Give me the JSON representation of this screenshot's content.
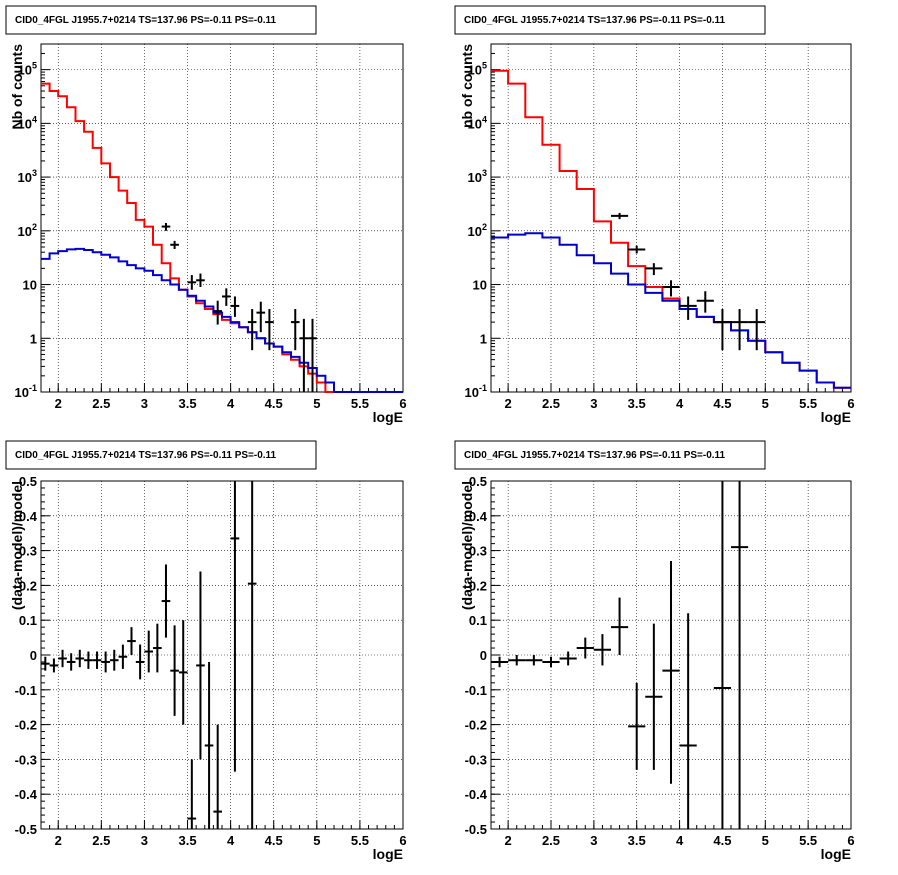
{
  "chart_data": [
    {
      "type": "line",
      "title": "CID0_4FGL J1955.7+0214 TS=137.96 PS=-0.11 PS=-0.11",
      "xlabel": "logE",
      "ylabel": "Nb of counts",
      "xlim": [
        1.8,
        6
      ],
      "ylim": [
        0.1,
        300000
      ],
      "log_y": true,
      "grid": true,
      "x_ticks": [
        "2",
        "2.5",
        "3",
        "3.5",
        "4",
        "4.5",
        "5",
        "5.5",
        "6"
      ],
      "y_ticks": [
        {
          "value": 0.1,
          "label": "10",
          "exp": "-1"
        },
        {
          "value": 1,
          "label": "1",
          "exp": ""
        },
        {
          "value": 10,
          "label": "10",
          "exp": ""
        },
        {
          "value": 100,
          "label": "10",
          "exp": "2"
        },
        {
          "value": 1000,
          "label": "10",
          "exp": "3"
        },
        {
          "value": 10000,
          "label": "10",
          "exp": "4"
        },
        {
          "value": 100000,
          "label": "10",
          "exp": "5"
        }
      ],
      "bin_edges": [
        1.8,
        1.9,
        2.0,
        2.1,
        2.2,
        2.3,
        2.4,
        2.5,
        2.6,
        2.7,
        2.8,
        2.9,
        3.0,
        3.1,
        3.2,
        3.3,
        3.4,
        3.5,
        3.6,
        3.7,
        3.8,
        3.9,
        4.0,
        4.1,
        4.2,
        4.3,
        4.4,
        4.5,
        4.6,
        4.7,
        4.8,
        4.9,
        5.0,
        5.1,
        5.2,
        5.3,
        5.4,
        5.5,
        5.6,
        5.7,
        5.8,
        5.9,
        6.0
      ],
      "series": [
        {
          "color": "#ff0000",
          "style": "step",
          "values": [
            55000,
            40000,
            32000,
            20000,
            11000,
            7000,
            3500,
            1800,
            1000,
            560,
            330,
            160,
            120,
            55,
            25,
            13,
            8,
            6,
            4.5,
            3.5,
            2.8,
            2.2,
            1.9,
            1.6,
            1.3,
            1.0,
            0.8,
            0.7,
            0.5,
            0.4,
            0.3,
            0.22,
            0.15,
            0.1,
            0.1,
            0.1,
            0.1,
            0.1,
            0.1,
            0.1,
            0.1,
            0.1
          ]
        },
        {
          "color": "#0000cc",
          "style": "step",
          "values": [
            30,
            38,
            42,
            45,
            46,
            44,
            40,
            36,
            32,
            27,
            23,
            20,
            18,
            15,
            12,
            10,
            8,
            6.2,
            5,
            3.9,
            3.0,
            2.5,
            2.0,
            1.6,
            1.3,
            1.0,
            0.8,
            0.7,
            0.55,
            0.45,
            0.35,
            0.28,
            0.2,
            0.15,
            0.1,
            0.1,
            0.1,
            0.1,
            0.1,
            0.1,
            0.1,
            0.1
          ]
        },
        {
          "color": "#000000",
          "style": "points",
          "points": [
            {
              "x": 3.25,
              "y": 120,
              "xerr": 0.05,
              "lo": 100,
              "hi": 140
            },
            {
              "x": 3.35,
              "y": 55,
              "xerr": 0.05,
              "lo": 46,
              "hi": 65
            },
            {
              "x": 3.55,
              "y": 11,
              "xerr": 0.05,
              "lo": 8,
              "hi": 15
            },
            {
              "x": 3.65,
              "y": 12,
              "xerr": 0.05,
              "lo": 9,
              "hi": 16
            },
            {
              "x": 3.85,
              "y": 3.2,
              "xerr": 0.05,
              "lo": 1.8,
              "hi": 5
            },
            {
              "x": 3.95,
              "y": 6,
              "xerr": 0.05,
              "lo": 4,
              "hi": 8.5
            },
            {
              "x": 4.05,
              "y": 4,
              "xerr": 0.05,
              "lo": 2.5,
              "hi": 6
            },
            {
              "x": 4.25,
              "y": 2,
              "xerr": 0.05,
              "lo": 0.6,
              "hi": 3.5
            },
            {
              "x": 4.35,
              "y": 3,
              "xerr": 0.05,
              "lo": 1.3,
              "hi": 4.8
            },
            {
              "x": 4.45,
              "y": 2,
              "xerr": 0.05,
              "lo": 0.6,
              "hi": 3.5
            },
            {
              "x": 4.75,
              "y": 2,
              "xerr": 0.05,
              "lo": 0.6,
              "hi": 3.5
            },
            {
              "x": 4.85,
              "y": 1,
              "xerr": 0.05,
              "lo": 0.1,
              "hi": 2.3
            },
            {
              "x": 4.95,
              "y": 1,
              "xerr": 0.05,
              "lo": 0.1,
              "hi": 2.3
            }
          ]
        }
      ]
    },
    {
      "type": "line",
      "title": "CID0_4FGL J1955.7+0214 TS=137.96 PS=-0.11 PS=-0.11",
      "xlabel": "logE",
      "ylabel": "nb of counts",
      "xlim": [
        1.8,
        6
      ],
      "ylim": [
        0.1,
        300000
      ],
      "log_y": true,
      "grid": true,
      "x_ticks": [
        "2",
        "2.5",
        "3",
        "3.5",
        "4",
        "4.5",
        "5",
        "5.5",
        "6"
      ],
      "y_ticks": [
        {
          "value": 0.1,
          "label": "10",
          "exp": "-1"
        },
        {
          "value": 1,
          "label": "1",
          "exp": ""
        },
        {
          "value": 10,
          "label": "10",
          "exp": ""
        },
        {
          "value": 100,
          "label": "10",
          "exp": "2"
        },
        {
          "value": 1000,
          "label": "10",
          "exp": "3"
        },
        {
          "value": 10000,
          "label": "10",
          "exp": "4"
        },
        {
          "value": 100000,
          "label": "10",
          "exp": "5"
        }
      ],
      "bin_edges": [
        1.8,
        2.0,
        2.2,
        2.4,
        2.6,
        2.8,
        3.0,
        3.2,
        3.4,
        3.6,
        3.8,
        4.0,
        4.2,
        4.4,
        4.6,
        4.8,
        5.0,
        5.2,
        5.4,
        5.6,
        5.8,
        6.0
      ],
      "series": [
        {
          "color": "#ff0000",
          "style": "step",
          "values": [
            95000,
            55000,
            13000,
            4000,
            1300,
            600,
            150,
            60,
            22,
            9,
            5.5,
            3.5,
            2.5,
            2.0,
            1.4,
            0.9,
            0.55,
            0.35,
            0.25,
            0.15,
            0.12
          ]
        },
        {
          "color": "#0000cc",
          "style": "step",
          "values": [
            75,
            85,
            90,
            75,
            55,
            35,
            25,
            16,
            10,
            7,
            5,
            3.5,
            2.5,
            2.0,
            1.4,
            0.9,
            0.55,
            0.35,
            0.25,
            0.15,
            0.12
          ]
        },
        {
          "color": "#000000",
          "style": "points",
          "points": [
            {
              "x": 3.3,
              "y": 190,
              "xerr": 0.1,
              "lo": 165,
              "hi": 215
            },
            {
              "x": 3.5,
              "y": 45,
              "xerr": 0.1,
              "lo": 38,
              "hi": 53
            },
            {
              "x": 3.7,
              "y": 20,
              "xerr": 0.1,
              "lo": 15,
              "hi": 25
            },
            {
              "x": 3.9,
              "y": 9,
              "xerr": 0.1,
              "lo": 6,
              "hi": 12
            },
            {
              "x": 4.1,
              "y": 4,
              "xerr": 0.1,
              "lo": 2.2,
              "hi": 6
            },
            {
              "x": 4.3,
              "y": 5,
              "xerr": 0.1,
              "lo": 3,
              "hi": 7.5
            },
            {
              "x": 4.5,
              "y": 2,
              "xerr": 0.1,
              "lo": 0.6,
              "hi": 3.5
            },
            {
              "x": 4.7,
              "y": 2,
              "xerr": 0.1,
              "lo": 0.6,
              "hi": 3.5
            },
            {
              "x": 4.9,
              "y": 2,
              "xerr": 0.1,
              "lo": 0.6,
              "hi": 3.5
            }
          ]
        }
      ]
    },
    {
      "type": "scatter",
      "title": "CID0_4FGL J1955.7+0214 TS=137.96 PS=-0.11 PS=-0.11",
      "xlabel": "logE",
      "ylabel": "(data-model)/model",
      "xlim": [
        1.8,
        6
      ],
      "ylim": [
        -0.5,
        0.5
      ],
      "log_y": false,
      "grid": true,
      "x_ticks": [
        "2",
        "2.5",
        "3",
        "3.5",
        "4",
        "4.5",
        "5",
        "5.5",
        "6"
      ],
      "y_ticks": [
        {
          "value": -0.5,
          "label": "-0.5",
          "exp": ""
        },
        {
          "value": -0.4,
          "label": "-0.4",
          "exp": ""
        },
        {
          "value": -0.3,
          "label": "-0.3",
          "exp": ""
        },
        {
          "value": -0.2,
          "label": "-0.2",
          "exp": ""
        },
        {
          "value": -0.1,
          "label": "-0.1",
          "exp": ""
        },
        {
          "value": 0,
          "label": "0",
          "exp": ""
        },
        {
          "value": 0.1,
          "label": "0.1",
          "exp": ""
        },
        {
          "value": 0.2,
          "label": "0.2",
          "exp": ""
        },
        {
          "value": 0.3,
          "label": "0.3",
          "exp": ""
        },
        {
          "value": 0.4,
          "label": "0.4",
          "exp": ""
        },
        {
          "value": 0.5,
          "label": "0.5",
          "exp": ""
        }
      ],
      "series": [
        {
          "color": "#000000",
          "style": "points",
          "points": [
            {
              "x": 1.85,
              "y": -0.025,
              "xerr": 0.05,
              "lo": -0.045,
              "hi": -0.005
            },
            {
              "x": 1.95,
              "y": -0.03,
              "xerr": 0.05,
              "lo": -0.05,
              "hi": -0.01
            },
            {
              "x": 2.05,
              "y": -0.01,
              "xerr": 0.05,
              "lo": -0.035,
              "hi": 0.015
            },
            {
              "x": 2.15,
              "y": -0.02,
              "xerr": 0.05,
              "lo": -0.045,
              "hi": 0.005
            },
            {
              "x": 2.25,
              "y": -0.01,
              "xerr": 0.05,
              "lo": -0.035,
              "hi": 0.015
            },
            {
              "x": 2.35,
              "y": -0.015,
              "xerr": 0.05,
              "lo": -0.04,
              "hi": 0.01
            },
            {
              "x": 2.45,
              "y": -0.015,
              "xerr": 0.05,
              "lo": -0.04,
              "hi": 0.01
            },
            {
              "x": 2.55,
              "y": -0.02,
              "xerr": 0.05,
              "lo": -0.05,
              "hi": 0.01
            },
            {
              "x": 2.65,
              "y": -0.015,
              "xerr": 0.05,
              "lo": -0.045,
              "hi": 0.015
            },
            {
              "x": 2.75,
              "y": -0.005,
              "xerr": 0.05,
              "lo": -0.04,
              "hi": 0.03
            },
            {
              "x": 2.85,
              "y": 0.04,
              "xerr": 0.05,
              "lo": 0.0,
              "hi": 0.08
            },
            {
              "x": 2.95,
              "y": -0.02,
              "xerr": 0.05,
              "lo": -0.07,
              "hi": 0.03
            },
            {
              "x": 3.05,
              "y": 0.01,
              "xerr": 0.05,
              "lo": -0.05,
              "hi": 0.07
            },
            {
              "x": 3.15,
              "y": 0.02,
              "xerr": 0.05,
              "lo": -0.05,
              "hi": 0.09
            },
            {
              "x": 3.25,
              "y": 0.155,
              "xerr": 0.05,
              "lo": 0.05,
              "hi": 0.26
            },
            {
              "x": 3.35,
              "y": -0.045,
              "xerr": 0.05,
              "lo": -0.175,
              "hi": 0.085
            },
            {
              "x": 3.45,
              "y": -0.05,
              "xerr": 0.05,
              "lo": -0.2,
              "hi": 0.1
            },
            {
              "x": 3.55,
              "y": -0.47,
              "xerr": 0.05,
              "lo": -0.5,
              "hi": -0.3
            },
            {
              "x": 3.65,
              "y": -0.03,
              "xerr": 0.05,
              "lo": -0.3,
              "hi": 0.24
            },
            {
              "x": 3.75,
              "y": -0.26,
              "xerr": 0.05,
              "lo": -0.5,
              "hi": -0.02
            },
            {
              "x": 3.85,
              "y": -0.45,
              "xerr": 0.05,
              "lo": -0.5,
              "hi": -0.2
            },
            {
              "x": 4.05,
              "y": 0.335,
              "xerr": 0.05,
              "lo": -0.335,
              "hi": 0.5
            },
            {
              "x": 4.25,
              "y": 0.205,
              "xerr": 0.05,
              "lo": -0.5,
              "hi": 0.5
            }
          ]
        }
      ]
    },
    {
      "type": "scatter",
      "title": "CID0_4FGL J1955.7+0214 TS=137.96 PS=-0.11 PS=-0.11",
      "xlabel": "logE",
      "ylabel": "(data-model)/model",
      "xlim": [
        1.8,
        6
      ],
      "ylim": [
        -0.5,
        0.5
      ],
      "log_y": false,
      "grid": true,
      "x_ticks": [
        "2",
        "2.5",
        "3",
        "3.5",
        "4",
        "4.5",
        "5",
        "5.5",
        "6"
      ],
      "y_ticks": [
        {
          "value": -0.5,
          "label": "-0.5",
          "exp": ""
        },
        {
          "value": -0.4,
          "label": "-0.4",
          "exp": ""
        },
        {
          "value": -0.3,
          "label": "-0.3",
          "exp": ""
        },
        {
          "value": -0.2,
          "label": "-0.2",
          "exp": ""
        },
        {
          "value": -0.1,
          "label": "-0.1",
          "exp": ""
        },
        {
          "value": 0,
          "label": "0",
          "exp": ""
        },
        {
          "value": 0.1,
          "label": "0.1",
          "exp": ""
        },
        {
          "value": 0.2,
          "label": "0.2",
          "exp": ""
        },
        {
          "value": 0.3,
          "label": "0.3",
          "exp": ""
        },
        {
          "value": 0.4,
          "label": "0.4",
          "exp": ""
        },
        {
          "value": 0.5,
          "label": "0.5",
          "exp": ""
        }
      ],
      "series": [
        {
          "color": "#000000",
          "style": "points",
          "points": [
            {
              "x": 1.9,
              "y": -0.02,
              "xerr": 0.1,
              "lo": -0.035,
              "hi": -0.005
            },
            {
              "x": 2.1,
              "y": -0.015,
              "xerr": 0.1,
              "lo": -0.03,
              "hi": 0.0
            },
            {
              "x": 2.3,
              "y": -0.015,
              "xerr": 0.1,
              "lo": -0.03,
              "hi": 0.0
            },
            {
              "x": 2.5,
              "y": -0.02,
              "xerr": 0.1,
              "lo": -0.035,
              "hi": -0.005
            },
            {
              "x": 2.7,
              "y": -0.01,
              "xerr": 0.1,
              "lo": -0.03,
              "hi": 0.01
            },
            {
              "x": 2.9,
              "y": 0.02,
              "xerr": 0.1,
              "lo": -0.01,
              "hi": 0.05
            },
            {
              "x": 3.1,
              "y": 0.015,
              "xerr": 0.1,
              "lo": -0.03,
              "hi": 0.06
            },
            {
              "x": 3.3,
              "y": 0.08,
              "xerr": 0.1,
              "lo": 0.0,
              "hi": 0.165
            },
            {
              "x": 3.5,
              "y": -0.205,
              "xerr": 0.1,
              "lo": -0.33,
              "hi": -0.08
            },
            {
              "x": 3.7,
              "y": -0.12,
              "xerr": 0.1,
              "lo": -0.33,
              "hi": 0.09
            },
            {
              "x": 3.9,
              "y": -0.045,
              "xerr": 0.1,
              "lo": -0.37,
              "hi": 0.27
            },
            {
              "x": 4.1,
              "y": -0.26,
              "xerr": 0.1,
              "lo": -0.5,
              "hi": 0.12
            },
            {
              "x": 4.5,
              "y": -0.095,
              "xerr": 0.1,
              "lo": -0.5,
              "hi": 0.5
            },
            {
              "x": 4.7,
              "y": 0.31,
              "xerr": 0.1,
              "lo": -0.5,
              "hi": 0.5
            }
          ]
        }
      ]
    }
  ]
}
